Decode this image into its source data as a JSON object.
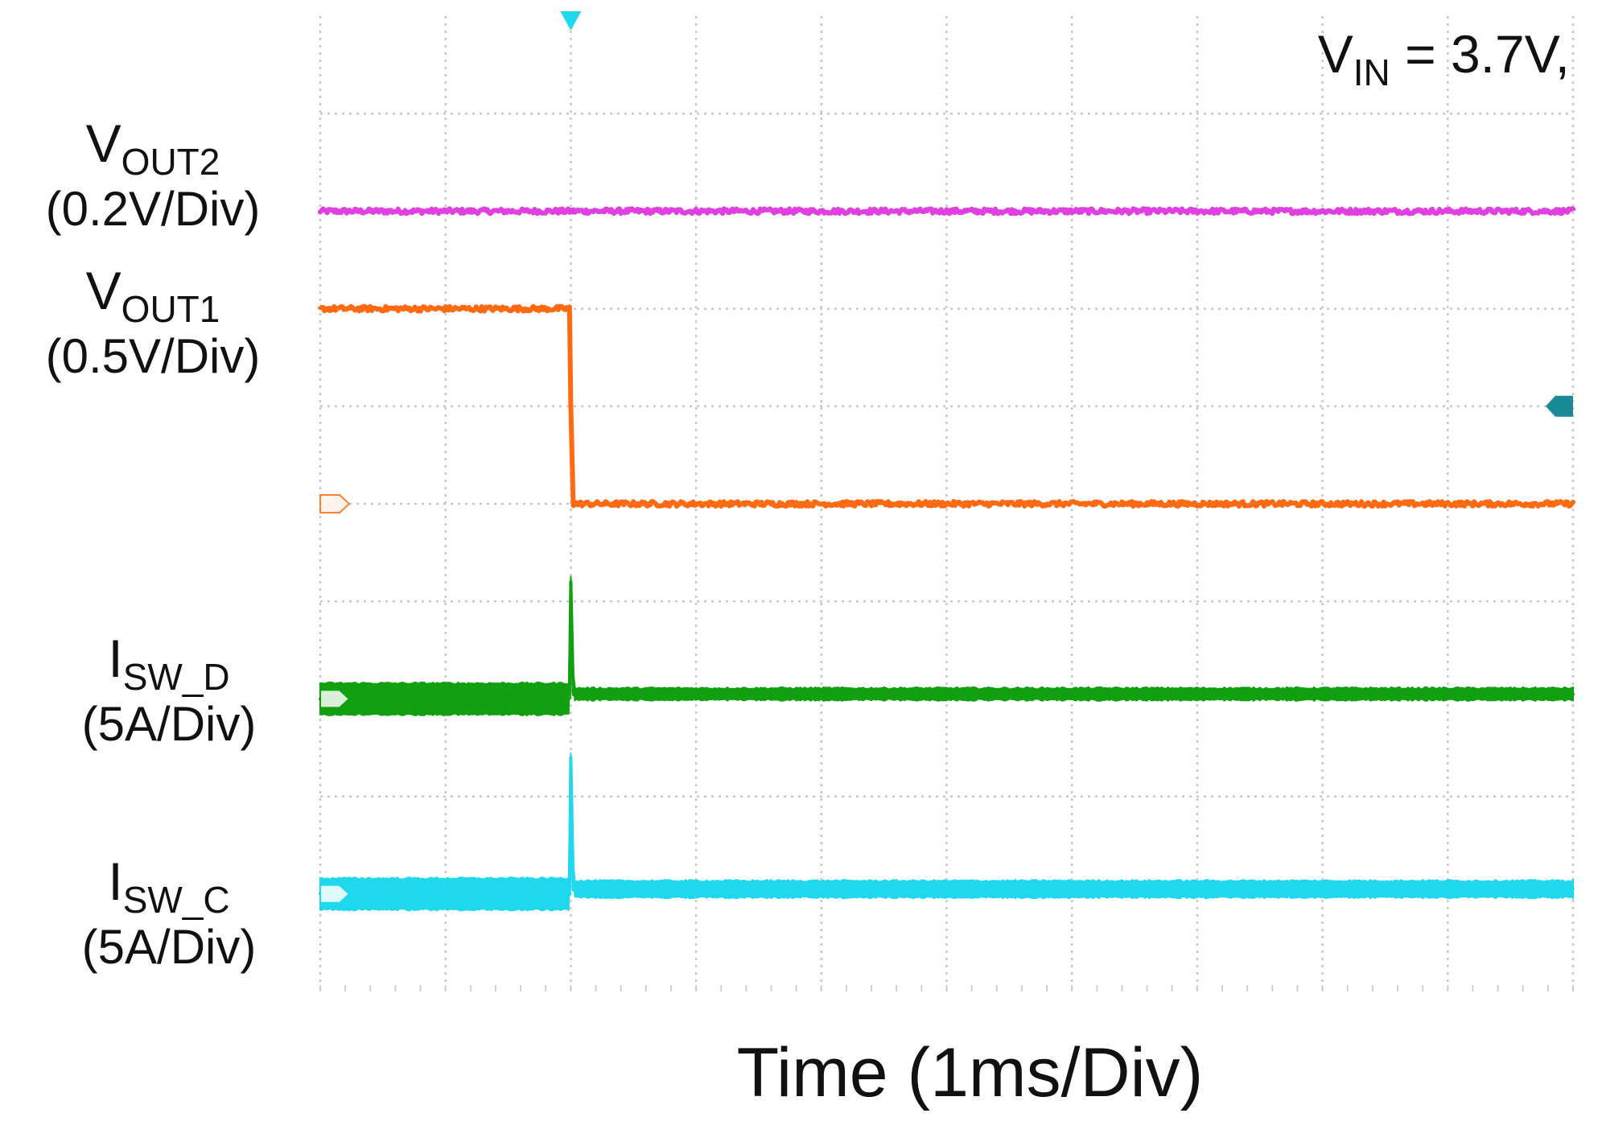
{
  "chart_data": {
    "type": "line",
    "xlabel": "Time (1ms/Div)",
    "condition": {
      "main": "V",
      "sub": "IN",
      "rest": " = 3.7V,"
    },
    "x_divisions": 10,
    "y_divisions": 10,
    "x_range_ms": [
      0,
      10
    ],
    "grid": true,
    "trigger_time_ms": 2,
    "series": [
      {
        "name": "VOUT2",
        "label_main": "V",
        "label_sub": "OUT2",
        "scale": "(0.2V/Div)",
        "color": "#e040e0",
        "x_ms": [
          0,
          10
        ],
        "y_div": [
          8.0,
          8.0
        ],
        "noise_div": 0.05
      },
      {
        "name": "VOUT1",
        "label_main": "V",
        "label_sub": "OUT1",
        "scale": "(0.5V/Div)",
        "color": "#ff6a13",
        "x_ms": [
          0,
          1.99,
          2.0,
          2.02,
          10
        ],
        "y_div": [
          7.0,
          7.0,
          6.0,
          5.0,
          5.0
        ],
        "noise_div": 0.05
      },
      {
        "name": "ISW_D",
        "label_main": "I",
        "label_sub": "SW_D",
        "scale": "(5A/Div)",
        "color": "#10a010",
        "x_ms": [
          0,
          1.99,
          2.0,
          2.02,
          10
        ],
        "y_div": [
          3.0,
          3.0,
          4.2,
          3.05,
          3.05
        ],
        "band_div": [
          0.3,
          0.3,
          0.1,
          0.1,
          0.1
        ],
        "noise_div": 0.02
      },
      {
        "name": "ISW_C",
        "label_main": "I",
        "label_sub": "SW_C",
        "scale": "(5A/Div)",
        "color": "#20d8ee",
        "x_ms": [
          0,
          1.99,
          2.0,
          2.02,
          10
        ],
        "y_div": [
          1.0,
          1.0,
          2.4,
          1.05,
          1.05
        ],
        "band_div": [
          0.3,
          0.3,
          0.1,
          0.15,
          0.15
        ],
        "noise_div": 0.02
      }
    ]
  }
}
